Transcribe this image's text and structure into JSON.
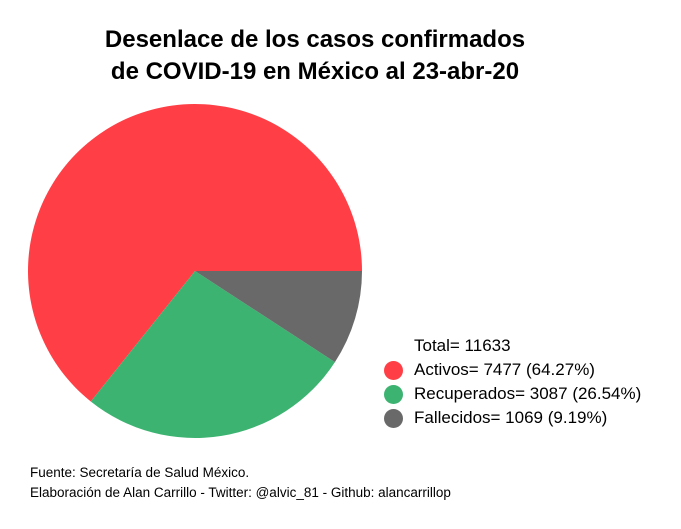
{
  "chart_data": {
    "type": "pie",
    "title_lines": [
      "Desenlace de los casos confirmados",
      "de COVID-19 en México al 23-abr-20"
    ],
    "total_label": "Total= 11633",
    "slices": [
      {
        "label": "Activos= 7477 (64.27%)",
        "value": 7477,
        "color": "#ff3f45"
      },
      {
        "label": "Recuperados= 3087 (26.54%)",
        "value": 3087,
        "color": "#3cb371"
      },
      {
        "label": "Fallecidos= 1069 (9.19%)",
        "value": 1069,
        "color": "#696969"
      }
    ],
    "legend_position": "bottom-right"
  },
  "footer": {
    "source": "Fuente: Secretaría de Salud México.",
    "credit": "Elaboración de Alan Carrillo - Twitter: @alvic_81 - Github: alancarrillop"
  }
}
